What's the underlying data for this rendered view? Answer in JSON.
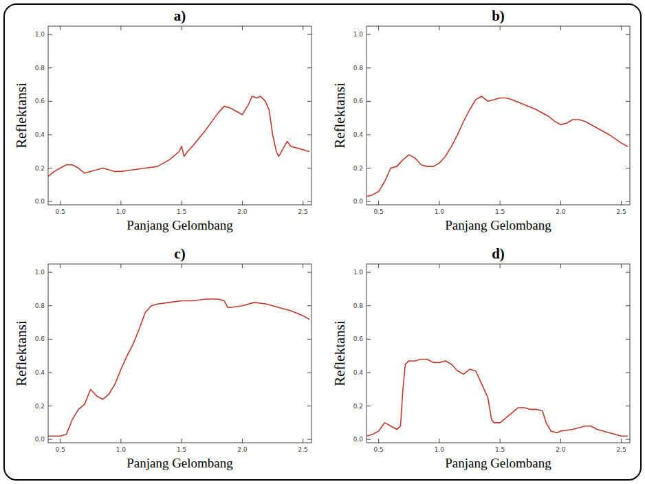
{
  "chart_data": [
    {
      "type": "line",
      "title": "a)",
      "x_label": "Panjang Gelombang",
      "y_label": "Reflektansi",
      "color": "#c0392b",
      "xlim": [
        0.4,
        2.57
      ],
      "ylim": [
        -0.02,
        1.05
      ],
      "xticks": [
        0.5,
        {
          "value": 1,
          "label": "1.0"
        },
        1.5,
        {
          "value": 2,
          "label": "2.0"
        },
        2.5
      ],
      "yticks": [
        {
          "value": 0,
          "label": "0.0"
        },
        0.2,
        0.4,
        0.6,
        0.8,
        {
          "value": 1,
          "label": "1.0"
        }
      ],
      "x": [
        0.4,
        0.45,
        0.5,
        0.55,
        0.6,
        0.65,
        0.7,
        0.75,
        0.8,
        0.85,
        0.9,
        0.95,
        1.0,
        1.1,
        1.2,
        1.3,
        1.4,
        1.48,
        1.5,
        1.52,
        1.55,
        1.6,
        1.7,
        1.8,
        1.85,
        1.9,
        2.0,
        2.05,
        2.08,
        2.12,
        2.15,
        2.19,
        2.22,
        2.25,
        2.28,
        2.3,
        2.33,
        2.37,
        2.4,
        2.45,
        2.5,
        2.55
      ],
      "values": [
        0.15,
        0.18,
        0.2,
        0.22,
        0.22,
        0.2,
        0.17,
        0.18,
        0.19,
        0.2,
        0.19,
        0.18,
        0.18,
        0.19,
        0.2,
        0.21,
        0.25,
        0.3,
        0.33,
        0.27,
        0.3,
        0.34,
        0.43,
        0.53,
        0.57,
        0.56,
        0.52,
        0.58,
        0.63,
        0.62,
        0.63,
        0.6,
        0.55,
        0.4,
        0.3,
        0.27,
        0.31,
        0.36,
        0.33,
        0.32,
        0.31,
        0.3
      ]
    },
    {
      "type": "line",
      "title": "b)",
      "x_label": "Panjang Gelombang",
      "y_label": "Reflektansi",
      "color": "#c0392b",
      "xlim": [
        0.4,
        2.57
      ],
      "ylim": [
        -0.02,
        1.05
      ],
      "xticks": [
        0.5,
        {
          "value": 1,
          "label": "1.0"
        },
        1.5,
        {
          "value": 2,
          "label": "2.0"
        },
        2.5
      ],
      "yticks": [
        {
          "value": 0,
          "label": "0.0"
        },
        0.2,
        0.4,
        0.6,
        0.8,
        {
          "value": 1,
          "label": "1.0"
        }
      ],
      "x": [
        0.4,
        0.45,
        0.5,
        0.55,
        0.6,
        0.65,
        0.7,
        0.75,
        0.8,
        0.85,
        0.9,
        0.95,
        1.0,
        1.05,
        1.1,
        1.15,
        1.2,
        1.25,
        1.3,
        1.35,
        1.4,
        1.45,
        1.5,
        1.55,
        1.6,
        1.7,
        1.8,
        1.9,
        1.95,
        2.0,
        2.05,
        2.1,
        2.15,
        2.2,
        2.3,
        2.4,
        2.5,
        2.55
      ],
      "values": [
        0.03,
        0.04,
        0.06,
        0.12,
        0.2,
        0.21,
        0.25,
        0.28,
        0.26,
        0.22,
        0.21,
        0.21,
        0.23,
        0.27,
        0.33,
        0.4,
        0.48,
        0.55,
        0.61,
        0.63,
        0.6,
        0.61,
        0.62,
        0.62,
        0.61,
        0.58,
        0.55,
        0.51,
        0.48,
        0.46,
        0.47,
        0.49,
        0.49,
        0.48,
        0.44,
        0.4,
        0.35,
        0.33
      ]
    },
    {
      "type": "line",
      "title": "c)",
      "x_label": "Panjang Gelombang",
      "y_label": "Reflektansi",
      "color": "#c0392b",
      "xlim": [
        0.4,
        2.57
      ],
      "ylim": [
        -0.02,
        1.05
      ],
      "xticks": [
        0.5,
        {
          "value": 1,
          "label": "1.0"
        },
        1.5,
        {
          "value": 2,
          "label": "2.0"
        },
        2.5
      ],
      "yticks": [
        {
          "value": 0,
          "label": "0.0"
        },
        0.2,
        0.4,
        0.6,
        0.8,
        {
          "value": 1,
          "label": "1.0"
        }
      ],
      "x": [
        0.4,
        0.5,
        0.55,
        0.6,
        0.65,
        0.7,
        0.75,
        0.8,
        0.85,
        0.9,
        0.95,
        1.0,
        1.05,
        1.1,
        1.15,
        1.2,
        1.25,
        1.3,
        1.4,
        1.5,
        1.6,
        1.7,
        1.8,
        1.85,
        1.88,
        1.9,
        2.0,
        2.1,
        2.2,
        2.3,
        2.4,
        2.5,
        2.55
      ],
      "values": [
        0.02,
        0.02,
        0.03,
        0.12,
        0.18,
        0.21,
        0.3,
        0.26,
        0.24,
        0.27,
        0.33,
        0.42,
        0.5,
        0.57,
        0.66,
        0.76,
        0.8,
        0.81,
        0.82,
        0.83,
        0.83,
        0.84,
        0.84,
        0.83,
        0.79,
        0.79,
        0.8,
        0.82,
        0.81,
        0.79,
        0.77,
        0.74,
        0.72
      ]
    },
    {
      "type": "line",
      "title": "d)",
      "x_label": "Panjang Gelombang",
      "y_label": "Reflektansi",
      "color": "#c0392b",
      "xlim": [
        0.4,
        2.57
      ],
      "ylim": [
        -0.02,
        1.05
      ],
      "xticks": [
        0.5,
        {
          "value": 1,
          "label": "1.0"
        },
        1.5,
        {
          "value": 2,
          "label": "2.0"
        },
        2.5
      ],
      "yticks": [
        {
          "value": 0,
          "label": "0.0"
        },
        0.2,
        0.4,
        0.6,
        0.8,
        {
          "value": 1,
          "label": "1.0"
        }
      ],
      "x": [
        0.4,
        0.45,
        0.5,
        0.55,
        0.6,
        0.65,
        0.68,
        0.7,
        0.72,
        0.75,
        0.8,
        0.85,
        0.9,
        0.95,
        1.0,
        1.05,
        1.1,
        1.15,
        1.2,
        1.25,
        1.3,
        1.35,
        1.4,
        1.43,
        1.45,
        1.5,
        1.55,
        1.6,
        1.65,
        1.7,
        1.75,
        1.8,
        1.85,
        1.88,
        1.92,
        1.97,
        2.0,
        2.1,
        2.2,
        2.25,
        2.3,
        2.4,
        2.5,
        2.55
      ],
      "values": [
        0.02,
        0.03,
        0.05,
        0.1,
        0.08,
        0.06,
        0.08,
        0.3,
        0.45,
        0.47,
        0.47,
        0.48,
        0.48,
        0.46,
        0.46,
        0.47,
        0.45,
        0.41,
        0.39,
        0.42,
        0.41,
        0.33,
        0.25,
        0.12,
        0.1,
        0.1,
        0.13,
        0.16,
        0.19,
        0.19,
        0.18,
        0.18,
        0.17,
        0.1,
        0.05,
        0.04,
        0.05,
        0.06,
        0.08,
        0.08,
        0.06,
        0.04,
        0.02,
        0.02
      ]
    }
  ]
}
